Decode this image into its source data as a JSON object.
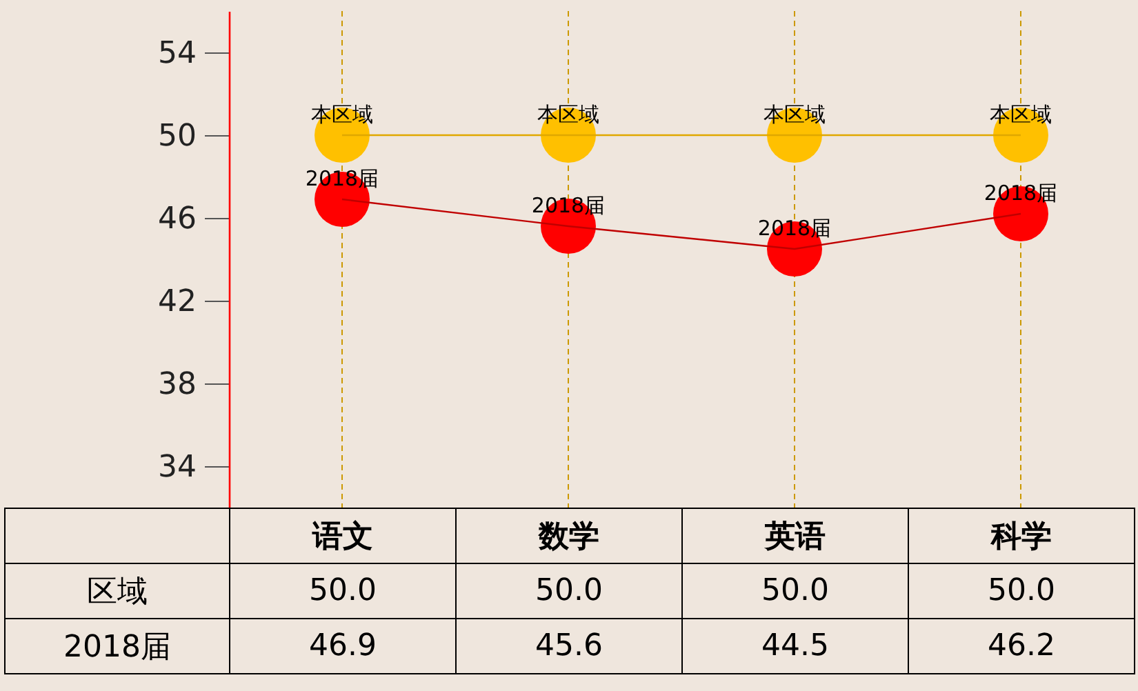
{
  "chart_data": {
    "type": "line",
    "categories": [
      "语文",
      "数学",
      "英语",
      "科学"
    ],
    "series": [
      {
        "name": "本区域",
        "color": "#e0a800",
        "colors": [
          "#ffc000",
          "#ffc000",
          "#ffc000",
          "#ffc000"
        ],
        "values": [
          50.0,
          50.0,
          50.0,
          50.0
        ],
        "value_labels": [
          "50.0",
          "50.0",
          "50.0",
          "50.0"
        ]
      },
      {
        "name": "2018届",
        "color": "#c00000",
        "colors": [
          "#ff0000",
          "#ff0000",
          "#ff0000",
          "#ff0000"
        ],
        "values": [
          46.9,
          45.6,
          44.5,
          46.2
        ],
        "value_labels": [
          "46.9",
          "45.6",
          "44.5",
          "46.2"
        ]
      }
    ],
    "ylim": [
      32,
      56
    ],
    "yticks": [
      34,
      38,
      42,
      46,
      50,
      54
    ],
    "grid": "x",
    "marker": "circle",
    "line_style": "solid",
    "tick_labels": "y",
    "annotations": [
      "区域"
    ]
  }
}
